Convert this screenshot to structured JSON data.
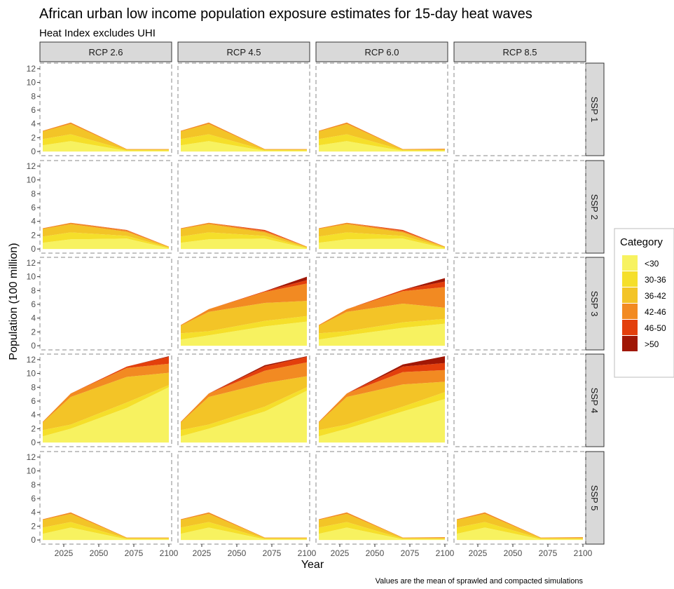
{
  "chart_data": {
    "type": "area",
    "stacked": true,
    "title": "African urban low income population exposure estimates for 15-day heat waves",
    "subtitle": "Heat Index excludes UHI",
    "caption": "Values are the mean of sprawled and compacted simulations",
    "xlabel": "Year",
    "ylabel": "Population (100 million)",
    "x": [
      2010,
      2030,
      2070,
      2100
    ],
    "xlim": [
      2008,
      2102
    ],
    "ylim": [
      -0.6,
      12.8
    ],
    "xticks": [
      "2025",
      "2050",
      "2075",
      "2100"
    ],
    "yticks": [
      "0",
      "2",
      "4",
      "6",
      "8",
      "10",
      "12"
    ],
    "columns": [
      "RCP 2.6",
      "RCP 4.5",
      "RCP 6.0",
      "RCP 8.5"
    ],
    "rows": [
      "SSP 1",
      "SSP 2",
      "SSP 3",
      "SSP 4",
      "SSP 5"
    ],
    "grid": false,
    "legend": {
      "title": "Category",
      "position": "right",
      "entries": [
        "<30",
        "30-36",
        "36-42",
        "42-46",
        "46-50",
        ">50"
      ],
      "colors": [
        "#f7f260",
        "#f5df2a",
        "#f3c427",
        "#f28a22",
        "#e33f0c",
        "#a01705"
      ]
    },
    "panels": [
      {
        "row": "SSP 1",
        "col": "RCP 2.6",
        "series": [
          [
            0.9,
            1.5,
            0.1,
            0.1
          ],
          [
            0.9,
            1.0,
            0.1,
            0.1
          ],
          [
            1.1,
            1.5,
            0.1,
            0.1
          ],
          [
            0.1,
            0.2,
            0.05,
            0.05
          ],
          [
            0.0,
            0.0,
            0.0,
            0.0
          ],
          [
            0.0,
            0.0,
            0.0,
            0.0
          ]
        ]
      },
      {
        "row": "SSP 1",
        "col": "RCP 4.5",
        "series": [
          [
            0.9,
            1.5,
            0.1,
            0.1
          ],
          [
            0.9,
            1.0,
            0.1,
            0.1
          ],
          [
            1.1,
            1.5,
            0.1,
            0.1
          ],
          [
            0.1,
            0.2,
            0.05,
            0.05
          ],
          [
            0.0,
            0.0,
            0.0,
            0.0
          ],
          [
            0.0,
            0.0,
            0.0,
            0.0
          ]
        ]
      },
      {
        "row": "SSP 1",
        "col": "RCP 6.0",
        "series": [
          [
            0.9,
            1.5,
            0.1,
            0.1
          ],
          [
            0.9,
            1.0,
            0.1,
            0.1
          ],
          [
            1.1,
            1.5,
            0.1,
            0.1
          ],
          [
            0.1,
            0.2,
            0.05,
            0.1
          ],
          [
            0.0,
            0.0,
            0.0,
            0.0
          ],
          [
            0.0,
            0.0,
            0.0,
            0.0
          ]
        ]
      },
      {
        "row": "SSP 2",
        "col": "RCP 2.6",
        "series": [
          [
            0.9,
            1.4,
            1.5,
            0.1
          ],
          [
            0.9,
            1.0,
            0.4,
            0.1
          ],
          [
            1.1,
            1.2,
            0.6,
            0.1
          ],
          [
            0.1,
            0.2,
            0.2,
            0.05
          ],
          [
            0.0,
            0.0,
            0.05,
            0.0
          ],
          [
            0.0,
            0.0,
            0.0,
            0.0
          ]
        ]
      },
      {
        "row": "SSP 2",
        "col": "RCP 4.5",
        "series": [
          [
            0.9,
            1.4,
            1.5,
            0.1
          ],
          [
            0.9,
            1.0,
            0.4,
            0.1
          ],
          [
            1.1,
            1.2,
            0.5,
            0.1
          ],
          [
            0.1,
            0.2,
            0.2,
            0.05
          ],
          [
            0.0,
            0.0,
            0.15,
            0.0
          ],
          [
            0.0,
            0.0,
            0.0,
            0.0
          ]
        ]
      },
      {
        "row": "SSP 2",
        "col": "RCP 6.0",
        "series": [
          [
            0.9,
            1.4,
            1.5,
            0.1
          ],
          [
            0.9,
            1.0,
            0.4,
            0.1
          ],
          [
            1.1,
            1.2,
            0.5,
            0.1
          ],
          [
            0.1,
            0.2,
            0.2,
            0.05
          ],
          [
            0.0,
            0.0,
            0.15,
            0.0
          ],
          [
            0.0,
            0.0,
            0.0,
            0.0
          ]
        ]
      },
      {
        "row": "SSP 3",
        "col": "RCP 4.5",
        "series": [
          [
            0.9,
            1.5,
            2.8,
            3.5
          ],
          [
            0.9,
            0.6,
            0.8,
            0.8
          ],
          [
            1.1,
            2.8,
            2.6,
            2.2
          ],
          [
            0.1,
            0.4,
            1.6,
            2.5
          ],
          [
            0.0,
            0.0,
            0.1,
            0.5
          ],
          [
            0.0,
            0.0,
            0.0,
            0.5
          ]
        ]
      },
      {
        "row": "SSP 3",
        "col": "RCP 6.0",
        "series": [
          [
            0.9,
            1.5,
            2.6,
            3.2
          ],
          [
            0.9,
            0.6,
            0.8,
            0.7
          ],
          [
            1.1,
            2.8,
            2.7,
            1.6
          ],
          [
            0.1,
            0.4,
            1.8,
            3.0
          ],
          [
            0.0,
            0.0,
            0.2,
            0.8
          ],
          [
            0.0,
            0.0,
            0.0,
            0.5
          ]
        ]
      },
      {
        "row": "SSP 4",
        "col": "RCP 2.6",
        "series": [
          [
            0.9,
            2.0,
            5.0,
            8.0
          ],
          [
            0.9,
            0.6,
            0.8,
            0.3
          ],
          [
            1.1,
            4.0,
            3.7,
            1.8
          ],
          [
            0.1,
            0.5,
            1.3,
            1.3
          ],
          [
            0.0,
            0.0,
            0.2,
            1.0
          ],
          [
            0.0,
            0.0,
            0.0,
            0.1
          ]
        ]
      },
      {
        "row": "SSP 4",
        "col": "RCP 4.5",
        "series": [
          [
            0.9,
            2.0,
            4.5,
            7.5
          ],
          [
            0.9,
            0.6,
            0.7,
            0.5
          ],
          [
            1.1,
            4.0,
            3.4,
            1.6
          ],
          [
            0.1,
            0.5,
            1.8,
            2.0
          ],
          [
            0.0,
            0.0,
            0.6,
            0.8
          ],
          [
            0.0,
            0.0,
            0.2,
            0.1
          ]
        ]
      },
      {
        "row": "SSP 4",
        "col": "RCP 6.0",
        "series": [
          [
            0.9,
            2.0,
            4.5,
            6.3
          ],
          [
            0.9,
            0.6,
            0.7,
            1.0
          ],
          [
            1.1,
            4.0,
            3.2,
            1.5
          ],
          [
            0.1,
            0.5,
            1.8,
            1.7
          ],
          [
            0.0,
            0.0,
            0.8,
            1.0
          ],
          [
            0.0,
            0.0,
            0.3,
            1.0
          ]
        ]
      },
      {
        "row": "SSP 5",
        "col": "RCP 2.6",
        "series": [
          [
            0.9,
            1.8,
            0.1,
            0.1
          ],
          [
            0.9,
            0.8,
            0.1,
            0.1
          ],
          [
            1.1,
            1.2,
            0.1,
            0.1
          ],
          [
            0.1,
            0.2,
            0.05,
            0.05
          ],
          [
            0.0,
            0.0,
            0.0,
            0.0
          ],
          [
            0.0,
            0.0,
            0.0,
            0.0
          ]
        ]
      },
      {
        "row": "SSP 5",
        "col": "RCP 4.5",
        "series": [
          [
            0.9,
            1.8,
            0.1,
            0.1
          ],
          [
            0.9,
            0.8,
            0.1,
            0.1
          ],
          [
            1.1,
            1.2,
            0.1,
            0.1
          ],
          [
            0.1,
            0.2,
            0.05,
            0.05
          ],
          [
            0.0,
            0.0,
            0.0,
            0.0
          ],
          [
            0.0,
            0.0,
            0.0,
            0.0
          ]
        ]
      },
      {
        "row": "SSP 5",
        "col": "RCP 6.0",
        "series": [
          [
            0.9,
            1.8,
            0.1,
            0.1
          ],
          [
            0.9,
            0.8,
            0.1,
            0.1
          ],
          [
            1.1,
            1.2,
            0.1,
            0.1
          ],
          [
            0.1,
            0.2,
            0.05,
            0.1
          ],
          [
            0.0,
            0.0,
            0.0,
            0.0
          ],
          [
            0.0,
            0.0,
            0.0,
            0.0
          ]
        ]
      },
      {
        "row": "SSP 5",
        "col": "RCP 8.5",
        "series": [
          [
            0.9,
            1.8,
            0.1,
            0.1
          ],
          [
            0.9,
            0.8,
            0.1,
            0.1
          ],
          [
            1.1,
            1.2,
            0.1,
            0.1
          ],
          [
            0.1,
            0.2,
            0.05,
            0.1
          ],
          [
            0.0,
            0.0,
            0.0,
            0.0
          ],
          [
            0.0,
            0.0,
            0.0,
            0.0
          ]
        ]
      }
    ]
  }
}
